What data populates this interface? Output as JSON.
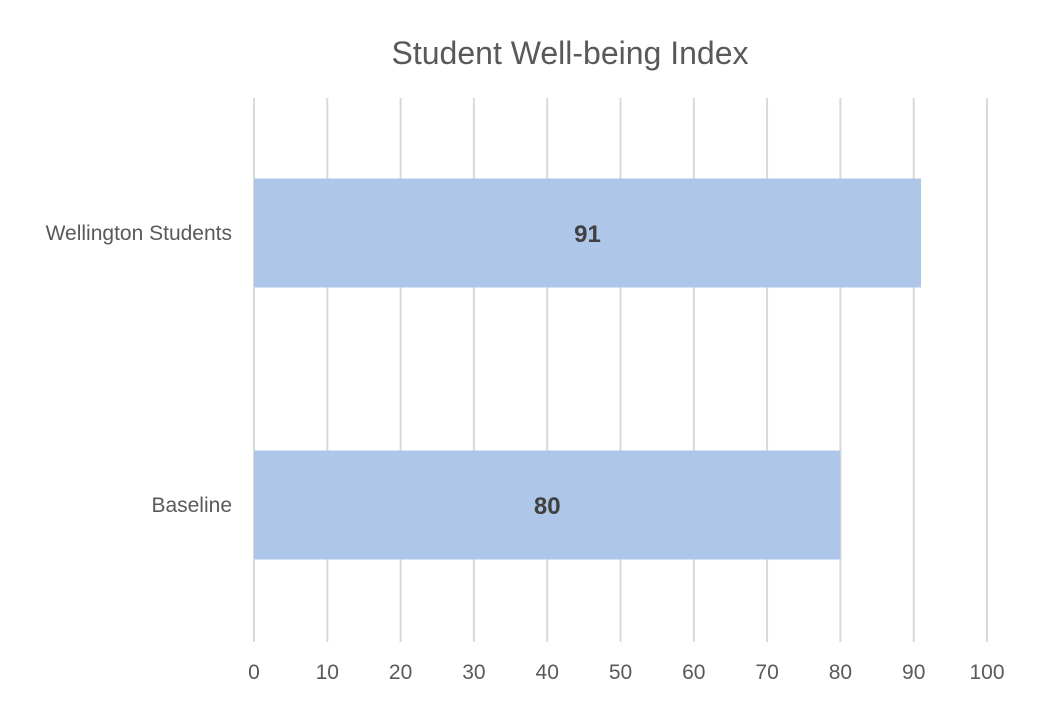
{
  "chart_data": {
    "type": "bar",
    "orientation": "horizontal",
    "title": "Student Well-being Index",
    "xlabel": "",
    "ylabel": "",
    "categories": [
      "Wellington Students",
      "Baseline"
    ],
    "values": [
      91,
      80
    ],
    "xlim": [
      0,
      100
    ],
    "x_ticks": [
      0,
      10,
      20,
      30,
      40,
      50,
      60,
      70,
      80,
      90,
      100
    ],
    "data_labels": [
      "91",
      "80"
    ],
    "grid": "vertical",
    "legend": "none",
    "colors": {
      "bar": "#aec7e8",
      "grid": "#d9d9d9",
      "text": "#595959",
      "data_label": "#404040"
    }
  }
}
